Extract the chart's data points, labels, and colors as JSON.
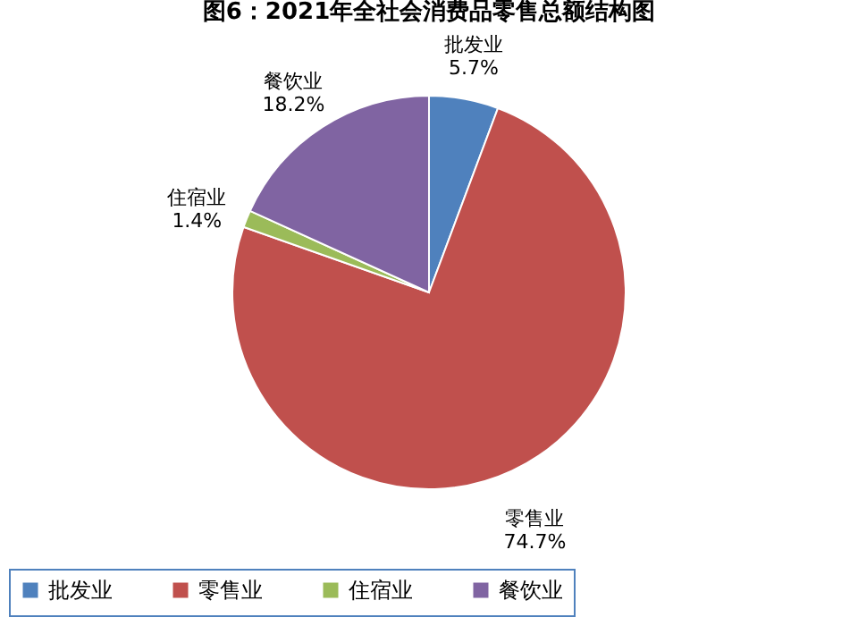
{
  "chart_data": {
    "type": "pie",
    "title": "图6：2021年全社会消费品零售总额结构图",
    "categories": [
      "批发业",
      "零售业",
      "住宿业",
      "餐饮业"
    ],
    "values": [
      5.7,
      74.7,
      1.4,
      18.2
    ],
    "colors": [
      "#4f81bd",
      "#c0504d",
      "#9bbb59",
      "#8064a2"
    ],
    "value_labels": [
      "5.7%",
      "74.7%",
      "1.4%",
      "18.2%"
    ],
    "legend": "bottom"
  }
}
